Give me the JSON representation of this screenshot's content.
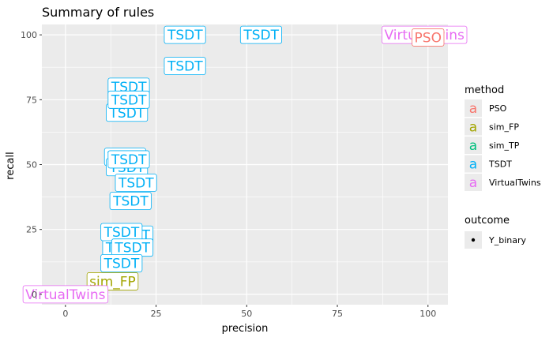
{
  "chart_data": {
    "type": "scatter",
    "title": "Summary of rules",
    "xlabel": "precision",
    "ylabel": "recall",
    "xlim": [
      -6.5,
      105.5
    ],
    "ylim": [
      -4,
      104
    ],
    "x_ticks": [
      0,
      25,
      50,
      75,
      100
    ],
    "y_ticks": [
      0,
      25,
      50,
      75,
      100
    ],
    "grid": true,
    "legend_position": "right",
    "colors": {
      "PSO": "#f8766d",
      "sim_FP": "#a3a500",
      "sim_TP": "#00bf7d",
      "TSDT": "#00b0f6",
      "VirtualTwins": "#e76bf3"
    },
    "legend": {
      "method_title": "method",
      "method_glyph": "a",
      "methods": [
        "PSO",
        "sim_FP",
        "sim_TP",
        "TSDT",
        "VirtualTwins"
      ],
      "outcome_title": "outcome",
      "outcomes": [
        "Y_binary"
      ]
    },
    "points": [
      {
        "method": "TSDT",
        "label": "TSDT",
        "x": 33,
        "y": 100
      },
      {
        "method": "TSDT",
        "label": "TSDT",
        "x": 54,
        "y": 100
      },
      {
        "method": "TSDT",
        "label": "TSDT",
        "x": 33,
        "y": 88
      },
      {
        "method": "TSDT",
        "label": "TSDT",
        "x": 17.5,
        "y": 80
      },
      {
        "method": "TSDT",
        "label": "TSDT",
        "x": 17,
        "y": 70
      },
      {
        "method": "TSDT",
        "label": "TSDT",
        "x": 17.5,
        "y": 75
      },
      {
        "method": "TSDT",
        "label": "TSDT",
        "x": 16.5,
        "y": 53
      },
      {
        "method": "TSDT",
        "label": "TSDT",
        "x": 17,
        "y": 49
      },
      {
        "method": "TSDT",
        "label": "TSDT",
        "x": 17.5,
        "y": 52
      },
      {
        "method": "TSDT",
        "label": "TSDT",
        "x": 19.5,
        "y": 43
      },
      {
        "method": "TSDT",
        "label": "TSDT",
        "x": 18,
        "y": 36
      },
      {
        "method": "TSDT",
        "label": "TSDT",
        "x": 18.5,
        "y": 23
      },
      {
        "method": "TSDT",
        "label": "TSDT",
        "x": 16,
        "y": 18
      },
      {
        "method": "TSDT",
        "label": "TSDT",
        "x": 15.5,
        "y": 24
      },
      {
        "method": "TSDT",
        "label": "TSDT",
        "x": 18.5,
        "y": 18
      },
      {
        "method": "TSDT",
        "label": "TSDT",
        "x": 15.5,
        "y": 12
      },
      {
        "method": "sim_FP",
        "label": "sim_FP",
        "x": 13,
        "y": 5
      },
      {
        "method": "VirtualTwins",
        "label": "VirtualTwins",
        "x": 0,
        "y": 0
      },
      {
        "method": "VirtualTwins",
        "label": "VirtualTwins",
        "x": 99,
        "y": 100
      },
      {
        "method": "PSO",
        "label": "PSO",
        "x": 100,
        "y": 99
      }
    ]
  }
}
